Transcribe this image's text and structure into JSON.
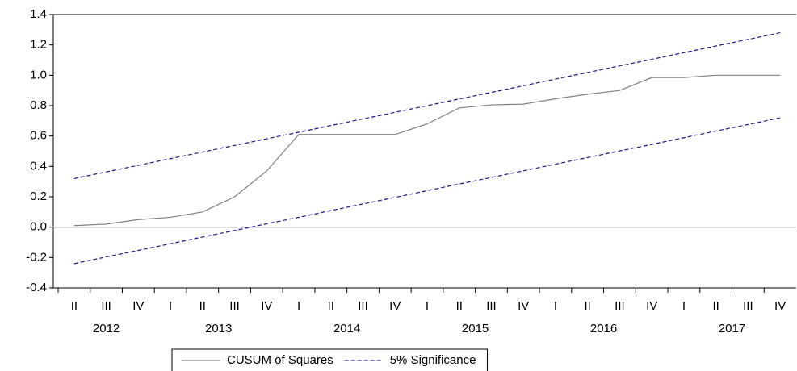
{
  "chart_data": {
    "type": "line",
    "categories": [
      "II",
      "III",
      "IV",
      "I",
      "II",
      "III",
      "IV",
      "I",
      "II",
      "III",
      "IV",
      "I",
      "II",
      "III",
      "IV",
      "I",
      "II",
      "III",
      "IV",
      "I",
      "II",
      "III",
      "IV"
    ],
    "groups": [
      {
        "label": "2012",
        "count": 3
      },
      {
        "label": "2013",
        "count": 4
      },
      {
        "label": "2014",
        "count": 4
      },
      {
        "label": "2015",
        "count": 4
      },
      {
        "label": "2016",
        "count": 4
      },
      {
        "label": "2017",
        "count": 4
      }
    ],
    "series": [
      {
        "name": "CUSUM of Squares",
        "color": "#808080",
        "values": [
          0.01,
          0.02,
          0.05,
          0.065,
          0.1,
          0.2,
          0.37,
          0.61,
          0.61,
          0.61,
          0.61,
          0.68,
          0.785,
          0.805,
          0.81,
          0.845,
          0.875,
          0.9,
          0.985,
          0.985,
          1.0,
          1.0,
          1.0
        ]
      },
      {
        "name": "5% Significance",
        "color": "#1a1a8c",
        "dashed": true,
        "upper": [
          0.32,
          0.364,
          0.407,
          0.451,
          0.495,
          0.538,
          0.582,
          0.625,
          0.669,
          0.713,
          0.756,
          0.8,
          0.844,
          0.887,
          0.931,
          0.975,
          1.018,
          1.062,
          1.105,
          1.149,
          1.193,
          1.236,
          1.28
        ],
        "lower": [
          -0.24,
          -0.196,
          -0.153,
          -0.109,
          -0.065,
          -0.022,
          0.022,
          0.065,
          0.109,
          0.153,
          0.196,
          0.24,
          0.284,
          0.327,
          0.371,
          0.415,
          0.458,
          0.502,
          0.545,
          0.589,
          0.633,
          0.676,
          0.72
        ]
      }
    ],
    "ylim": [
      -0.4,
      1.4
    ],
    "yticks": [
      -0.4,
      -0.2,
      {
        "value": 0,
        "label": "0.0"
      },
      0.2,
      0.4,
      0.6,
      0.8,
      {
        "value": 1,
        "label": "1.0"
      },
      1.2,
      1.4
    ],
    "zero_line": true,
    "legend": "bottom"
  }
}
